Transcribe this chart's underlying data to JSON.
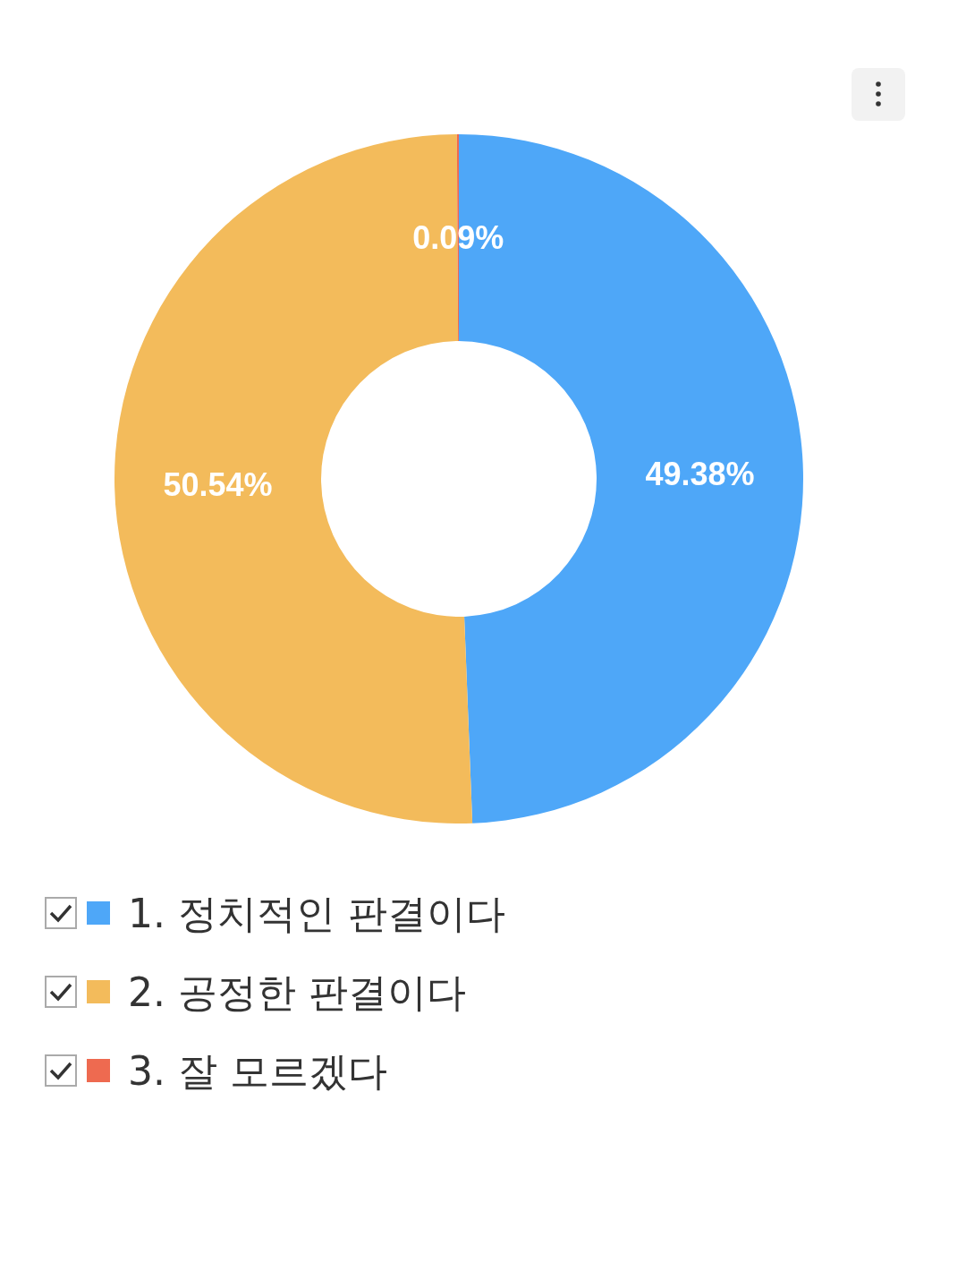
{
  "chart_data": {
    "type": "donut",
    "categories": [
      "1. 정치적인 판결이다",
      "2. 공정한 판결이다",
      "3. 잘 모르겠다"
    ],
    "values": [
      49.38,
      50.54,
      0.09
    ],
    "colors": [
      "#4ea7f8",
      "#f3bb5b",
      "#ee6a50"
    ],
    "value_labels": [
      "49.38%",
      "50.54%",
      "0.09%"
    ],
    "legend": "bottom"
  }
}
